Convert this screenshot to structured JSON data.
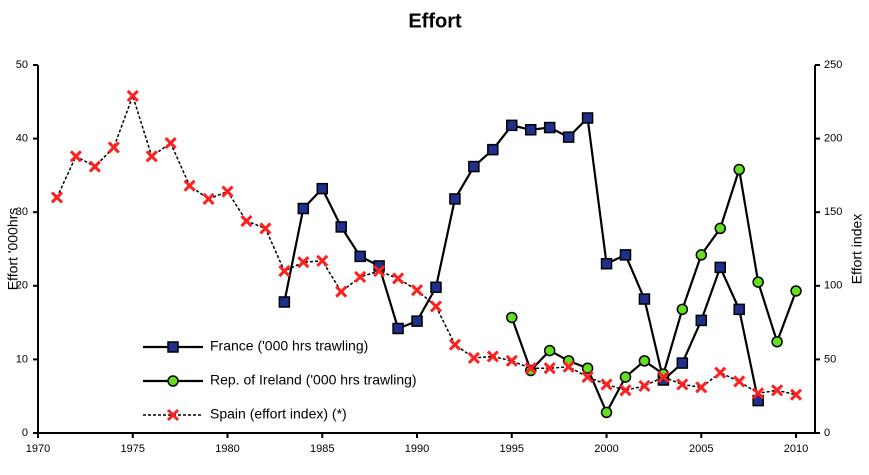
{
  "chart_data": {
    "type": "line",
    "title": "Effort",
    "y_label": "Effort '000hrs",
    "y2_label": "Effort index",
    "xlim": [
      1970,
      2011
    ],
    "xticks": [
      1970,
      1975,
      1980,
      1985,
      1990,
      1995,
      2000,
      2005,
      2010
    ],
    "ylim": [
      0,
      50
    ],
    "yticks": [
      0,
      10,
      20,
      30,
      40,
      50
    ],
    "y2lim": [
      0,
      250
    ],
    "y2ticks": [
      0,
      50,
      100,
      150,
      200,
      250
    ],
    "series": [
      {
        "name": "France ('000 hrs trawling)",
        "color": "#1f2f8c",
        "marker": "square",
        "dash": false,
        "x": [
          1983,
          1984,
          1985,
          1986,
          1987,
          1988,
          1989,
          1990,
          1991,
          1992,
          1993,
          1994,
          1995,
          1996,
          1997,
          1998,
          1999,
          2000,
          2001,
          2002,
          2003,
          2004,
          2005,
          2006,
          2007,
          2008
        ],
        "values": [
          17.8,
          30.5,
          33.2,
          28,
          24,
          22.7,
          14.2,
          15.2,
          19.8,
          31.8,
          36.2,
          38.5,
          41.8,
          41.2,
          41.5,
          40.2,
          42.8,
          23,
          24.2,
          18.2,
          7.2,
          9.5,
          15.3,
          22.5,
          16.8,
          4.4
        ]
      },
      {
        "name": "Rep. of Ireland ('000 hrs trawling)",
        "color": "#66dd22",
        "marker": "circle",
        "dash": false,
        "x": [
          1995,
          1996,
          1997,
          1998,
          1999,
          2000,
          2001,
          2002,
          2003,
          2004,
          2005,
          2006,
          2007,
          2008,
          2009,
          2010
        ],
        "values": [
          15.7,
          8.5,
          11.2,
          9.8,
          8.8,
          2.8,
          7.6,
          9.8,
          8,
          16.8,
          24.2,
          27.8,
          35.8,
          20.5,
          12.4,
          19.3
        ]
      },
      {
        "name": "Spain (effort index) (*)",
        "color": "#ff2020",
        "marker": "cross",
        "dash": true,
        "axis": "y2",
        "x": [
          1971,
          1972,
          1973,
          1974,
          1975,
          1976,
          1977,
          1978,
          1979,
          1980,
          1981,
          1982,
          1983,
          1984,
          1985,
          1986,
          1987,
          1988,
          1989,
          1990,
          1991,
          1992,
          1993,
          1994,
          1995,
          1996,
          1997,
          1998,
          1999,
          2000,
          2001,
          2002,
          2003,
          2004,
          2005,
          2006,
          2007,
          2008,
          2009,
          2010
        ],
        "values": [
          160,
          188,
          181,
          194,
          229,
          188,
          197,
          168,
          159,
          164,
          144,
          139,
          110,
          116,
          117,
          96,
          106,
          110,
          105,
          97,
          86,
          60,
          51,
          52,
          49,
          44,
          44,
          45,
          38,
          33,
          29,
          32,
          38,
          33,
          31,
          41,
          35,
          27,
          29,
          26
        ]
      }
    ]
  }
}
